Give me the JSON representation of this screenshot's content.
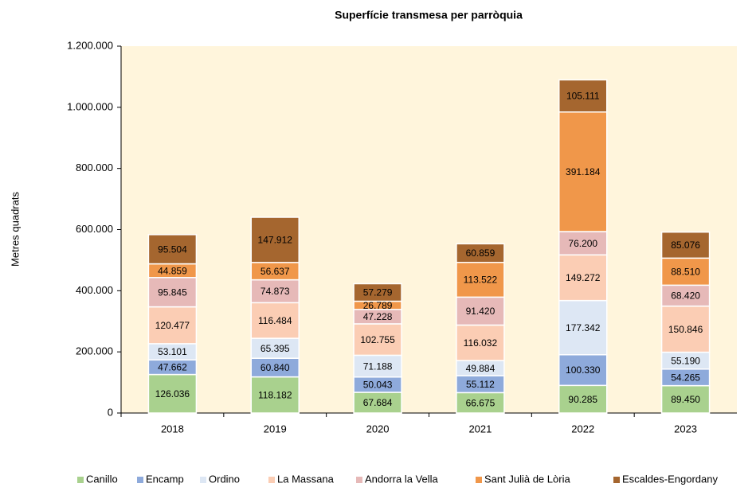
{
  "chart_data": {
    "type": "stacked_bar",
    "title": "Superfície transmesa per parròquia",
    "y_label": "Metres quadrats",
    "categories": [
      "2018",
      "2019",
      "2020",
      "2021",
      "2022",
      "2023"
    ],
    "series": [
      {
        "name": "Canillo",
        "color": "#a9d18e",
        "values": [
          126036,
          118182,
          67684,
          66675,
          90285,
          89450
        ],
        "value_labels": [
          "126.036",
          "118.182",
          "67.684",
          "66.675",
          "90.285",
          "89.450"
        ]
      },
      {
        "name": "Encamp",
        "color": "#8eaadb",
        "values": [
          47662,
          60840,
          50043,
          55112,
          100330,
          54265
        ],
        "value_labels": [
          "47.662",
          "60.840",
          "50.043",
          "55.112",
          "100.330",
          "54.265"
        ]
      },
      {
        "name": "Ordino",
        "color": "#dde7f4",
        "values": [
          53101,
          65395,
          71188,
          49884,
          177342,
          55190
        ],
        "value_labels": [
          "53.101",
          "65.395",
          "71.188",
          "49.884",
          "177.342",
          "55.190"
        ]
      },
      {
        "name": "La Massana",
        "color": "#fbcdb4",
        "values": [
          120477,
          116484,
          102755,
          116032,
          149272,
          150846
        ],
        "value_labels": [
          "120.477",
          "116.484",
          "102.755",
          "116.032",
          "149.272",
          "150.846"
        ]
      },
      {
        "name": "Andorra la Vella",
        "color": "#e6b9b8",
        "values": [
          95845,
          74873,
          47228,
          91420,
          76200,
          68420
        ],
        "value_labels": [
          "95.845",
          "74.873",
          "47.228",
          "91.420",
          "76.200",
          "68.420"
        ]
      },
      {
        "name": "Sant Julià de Lòria",
        "color": "#f0974a",
        "values": [
          44859,
          56637,
          26789,
          113522,
          391184,
          88510
        ],
        "value_labels": [
          "44.859",
          "56.637",
          "26.789",
          "113.522",
          "391.184",
          "88.510"
        ]
      },
      {
        "name": "Escaldes-Engordany",
        "color": "#a5662f",
        "values": [
          95504,
          147912,
          57279,
          60859,
          105111,
          85076
        ],
        "value_labels": [
          "95.504",
          "147.912",
          "57.279",
          "60.859",
          "105.111",
          "85.076"
        ]
      }
    ],
    "ylim": [
      0,
      1200000
    ],
    "yticks": [
      0,
      {
        "value": 200000,
        "label": "200.000"
      },
      {
        "value": 400000,
        "label": "400.000"
      },
      {
        "value": 600000,
        "label": "600.000"
      },
      {
        "value": 800000,
        "label": "800.000"
      },
      {
        "value": 1000000,
        "label": "1.000.000"
      },
      {
        "value": 1200000,
        "label": "1.200.000"
      }
    ],
    "legend": "bottom"
  }
}
